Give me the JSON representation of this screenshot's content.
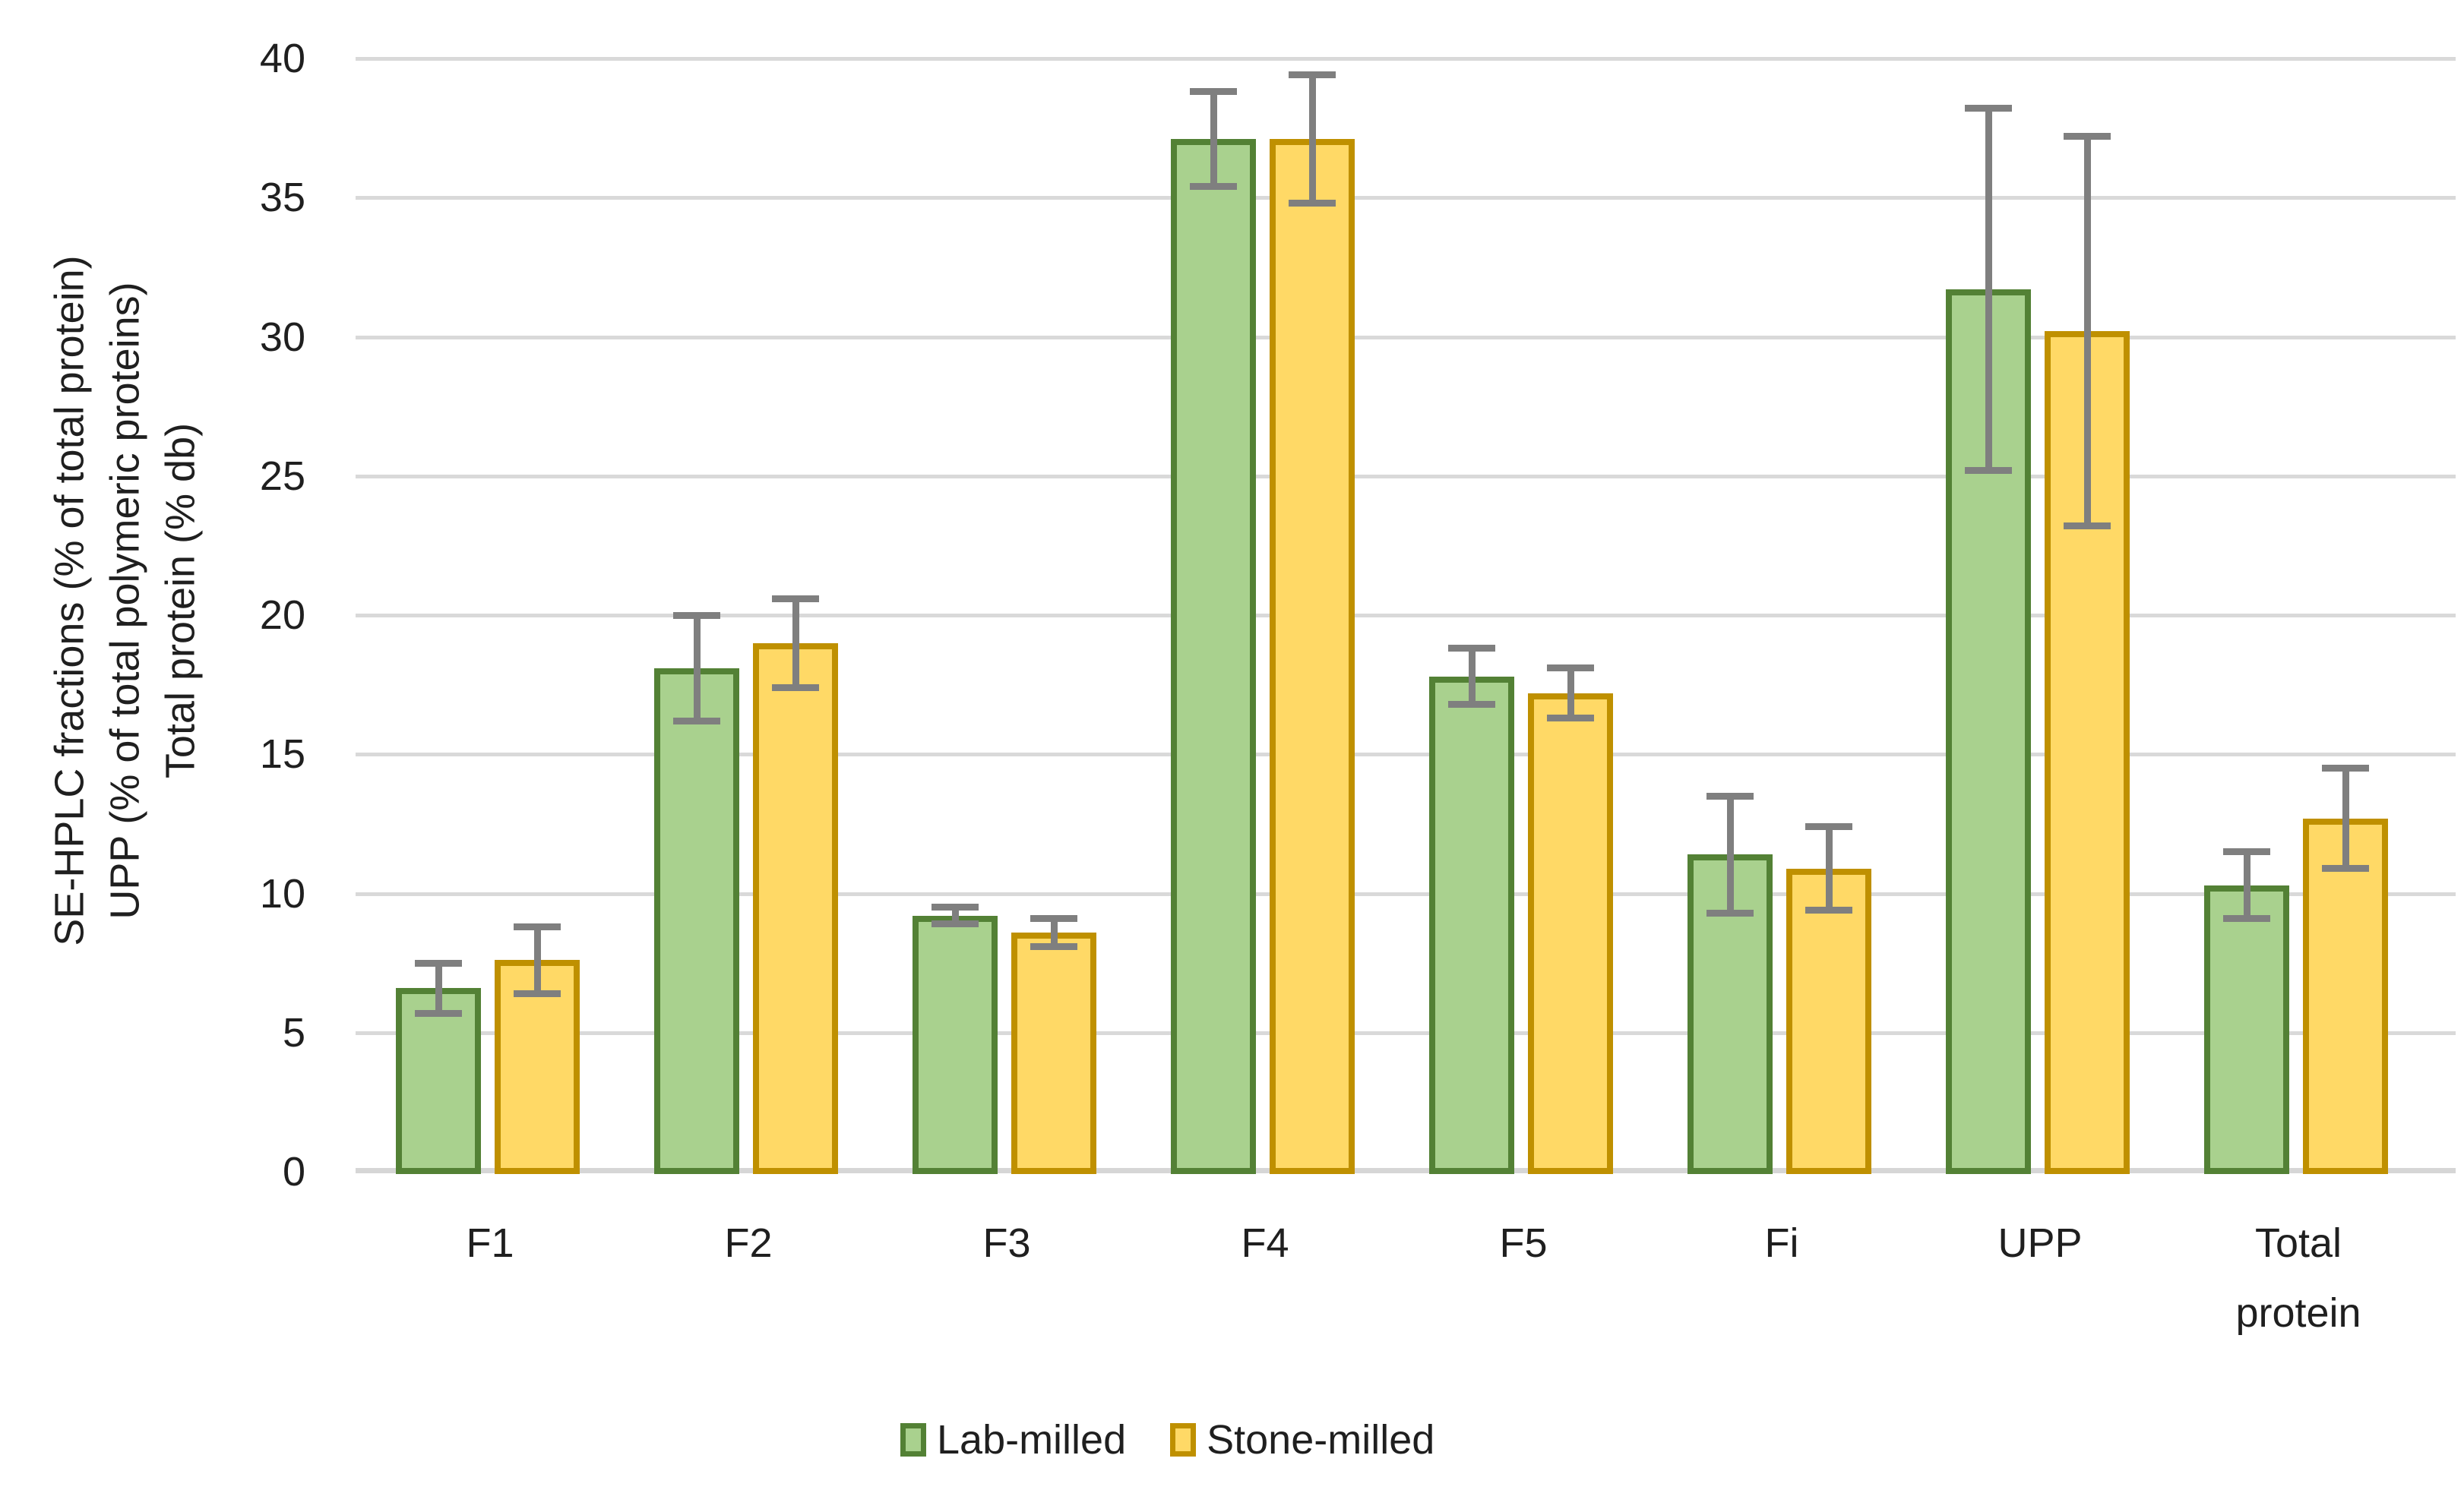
{
  "chart_data": {
    "type": "bar",
    "title": "",
    "categories": [
      "F1",
      "F2",
      "F3",
      "F4",
      "F5",
      "Fi",
      "UPP",
      "Total\nprotein"
    ],
    "series": [
      {
        "name": "Lab-milled",
        "values": [
          6.6,
          18.1,
          9.2,
          37.1,
          17.8,
          11.4,
          31.7,
          10.3
        ],
        "errors": [
          0.9,
          1.9,
          0.3,
          1.7,
          1.0,
          2.1,
          6.5,
          1.2
        ],
        "fill_color": "#a9d18e",
        "border_color": "#538135"
      },
      {
        "name": "Stone-milled",
        "values": [
          7.6,
          19.0,
          8.6,
          37.1,
          17.2,
          10.9,
          30.2,
          12.7
        ],
        "errors": [
          1.2,
          1.6,
          0.5,
          2.3,
          0.9,
          1.5,
          7.0,
          1.8
        ],
        "fill_color": "#ffd966",
        "border_color": "#bf9000"
      }
    ],
    "xlabel": "",
    "ylabel_lines": [
      "SE-HPLC fractions (% of total protein)",
      "UPP (% of total polymeric proteins)",
      "Total protein (% db)"
    ],
    "ylim": [
      0,
      40
    ],
    "yticks": [
      0,
      5,
      10,
      15,
      20,
      25,
      30,
      35,
      40
    ],
    "grid": true,
    "legend_position": "bottom",
    "error_bar_color": "#7f7f7f",
    "gridline_color": "#d9d9d9",
    "background_color": "#ffffff",
    "text_color": "#1f1f1f"
  }
}
